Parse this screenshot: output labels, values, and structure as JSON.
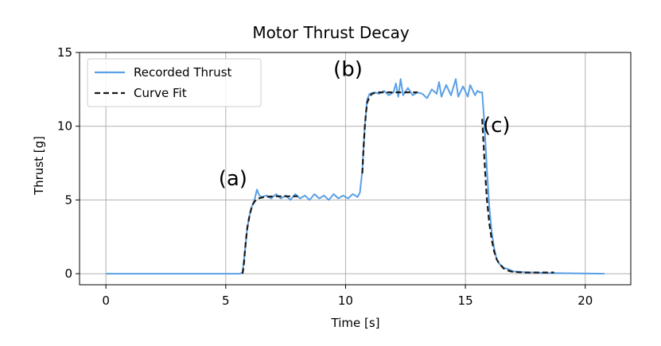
{
  "chart_data": {
    "type": "line",
    "title": "Motor Thrust Decay",
    "xlabel": "Time [s]",
    "ylabel": "Thrust [g]",
    "xlim": [
      -1.1,
      21.9
    ],
    "ylim": [
      -0.75,
      15
    ],
    "xticks": [
      0,
      5,
      10,
      15,
      20
    ],
    "yticks": [
      0,
      5,
      10,
      15
    ],
    "grid": true,
    "legend_position": "top-left",
    "annotations": [
      {
        "text": "(a)",
        "x": 5.3,
        "y": 6.0
      },
      {
        "text": "(b)",
        "x": 10.1,
        "y": 13.4
      },
      {
        "text": "(c)",
        "x": 16.3,
        "y": 9.6
      }
    ],
    "series": [
      {
        "name": "Recorded Thrust",
        "color": "#5aa0e6",
        "style": "solid",
        "points": [
          [
            0,
            0
          ],
          [
            5.6,
            0
          ],
          [
            5.7,
            0.1
          ],
          [
            5.8,
            1.5
          ],
          [
            5.9,
            3.1
          ],
          [
            6.0,
            4.0
          ],
          [
            6.1,
            4.6
          ],
          [
            6.2,
            5.0
          ],
          [
            6.3,
            5.7
          ],
          [
            6.4,
            5.3
          ],
          [
            6.5,
            5.2
          ],
          [
            6.7,
            5.3
          ],
          [
            6.9,
            5.1
          ],
          [
            7.1,
            5.4
          ],
          [
            7.3,
            5.1
          ],
          [
            7.5,
            5.3
          ],
          [
            7.7,
            5.0
          ],
          [
            7.9,
            5.4
          ],
          [
            8.1,
            5.1
          ],
          [
            8.3,
            5.3
          ],
          [
            8.5,
            5.0
          ],
          [
            8.7,
            5.4
          ],
          [
            8.9,
            5.1
          ],
          [
            9.1,
            5.3
          ],
          [
            9.3,
            5.0
          ],
          [
            9.5,
            5.4
          ],
          [
            9.7,
            5.1
          ],
          [
            9.9,
            5.3
          ],
          [
            10.1,
            5.1
          ],
          [
            10.3,
            5.4
          ],
          [
            10.5,
            5.2
          ],
          [
            10.6,
            5.5
          ],
          [
            10.7,
            7.0
          ],
          [
            10.8,
            10.0
          ],
          [
            10.9,
            11.8
          ],
          [
            11.0,
            12.2
          ],
          [
            11.2,
            12.3
          ],
          [
            11.4,
            12.2
          ],
          [
            11.6,
            12.4
          ],
          [
            11.8,
            12.1
          ],
          [
            12.0,
            12.3
          ],
          [
            12.1,
            12.9
          ],
          [
            12.2,
            12.0
          ],
          [
            12.3,
            13.2
          ],
          [
            12.4,
            12.1
          ],
          [
            12.6,
            12.6
          ],
          [
            12.8,
            12.1
          ],
          [
            13.0,
            12.3
          ],
          [
            13.2,
            12.2
          ],
          [
            13.4,
            11.9
          ],
          [
            13.6,
            12.5
          ],
          [
            13.8,
            12.2
          ],
          [
            13.9,
            13.0
          ],
          [
            14.0,
            12.0
          ],
          [
            14.2,
            12.8
          ],
          [
            14.4,
            12.1
          ],
          [
            14.6,
            13.2
          ],
          [
            14.7,
            12.0
          ],
          [
            14.9,
            12.7
          ],
          [
            15.1,
            12.0
          ],
          [
            15.2,
            12.8
          ],
          [
            15.4,
            12.1
          ],
          [
            15.5,
            12.4
          ],
          [
            15.6,
            12.3
          ],
          [
            15.7,
            12.3
          ],
          [
            15.8,
            10.0
          ],
          [
            15.9,
            7.0
          ],
          [
            16.0,
            4.5
          ],
          [
            16.1,
            2.8
          ],
          [
            16.2,
            1.7
          ],
          [
            16.3,
            1.0
          ],
          [
            16.4,
            0.7
          ],
          [
            16.6,
            0.4
          ],
          [
            16.8,
            0.3
          ],
          [
            17.0,
            0.15
          ],
          [
            17.5,
            0.1
          ],
          [
            18.5,
            0.05
          ],
          [
            20.8,
            0.0
          ]
        ]
      },
      {
        "name": "Curve Fit",
        "color": "#1a1a1a",
        "style": "dashed",
        "points": [
          [
            5.7,
            0.0
          ],
          [
            5.75,
            0.5
          ],
          [
            5.8,
            1.5
          ],
          [
            5.85,
            2.4
          ],
          [
            5.9,
            3.1
          ],
          [
            6.0,
            4.0
          ],
          [
            6.1,
            4.6
          ],
          [
            6.2,
            4.9
          ],
          [
            6.35,
            5.1
          ],
          [
            6.6,
            5.2
          ],
          [
            7.0,
            5.25
          ],
          [
            8.0,
            5.25
          ],
          [
            10.7,
            6.8
          ],
          [
            10.75,
            8.5
          ],
          [
            10.8,
            9.9
          ],
          [
            10.85,
            10.9
          ],
          [
            10.9,
            11.6
          ],
          [
            11.0,
            12.0
          ],
          [
            11.1,
            12.2
          ],
          [
            11.3,
            12.3
          ],
          [
            13.0,
            12.3
          ],
          [
            15.7,
            10.5
          ],
          [
            15.75,
            9.0
          ],
          [
            15.8,
            7.6
          ],
          [
            15.85,
            6.2
          ],
          [
            15.9,
            5.0
          ],
          [
            16.0,
            3.4
          ],
          [
            16.1,
            2.3
          ],
          [
            16.2,
            1.5
          ],
          [
            16.3,
            1.0
          ],
          [
            16.4,
            0.7
          ],
          [
            16.6,
            0.35
          ],
          [
            16.8,
            0.2
          ],
          [
            17.0,
            0.12
          ],
          [
            17.5,
            0.08
          ],
          [
            18.7,
            0.08
          ]
        ],
        "segments": [
          [
            0,
            12
          ],
          [
            12,
            21
          ],
          [
            21,
            36
          ]
        ]
      }
    ]
  }
}
